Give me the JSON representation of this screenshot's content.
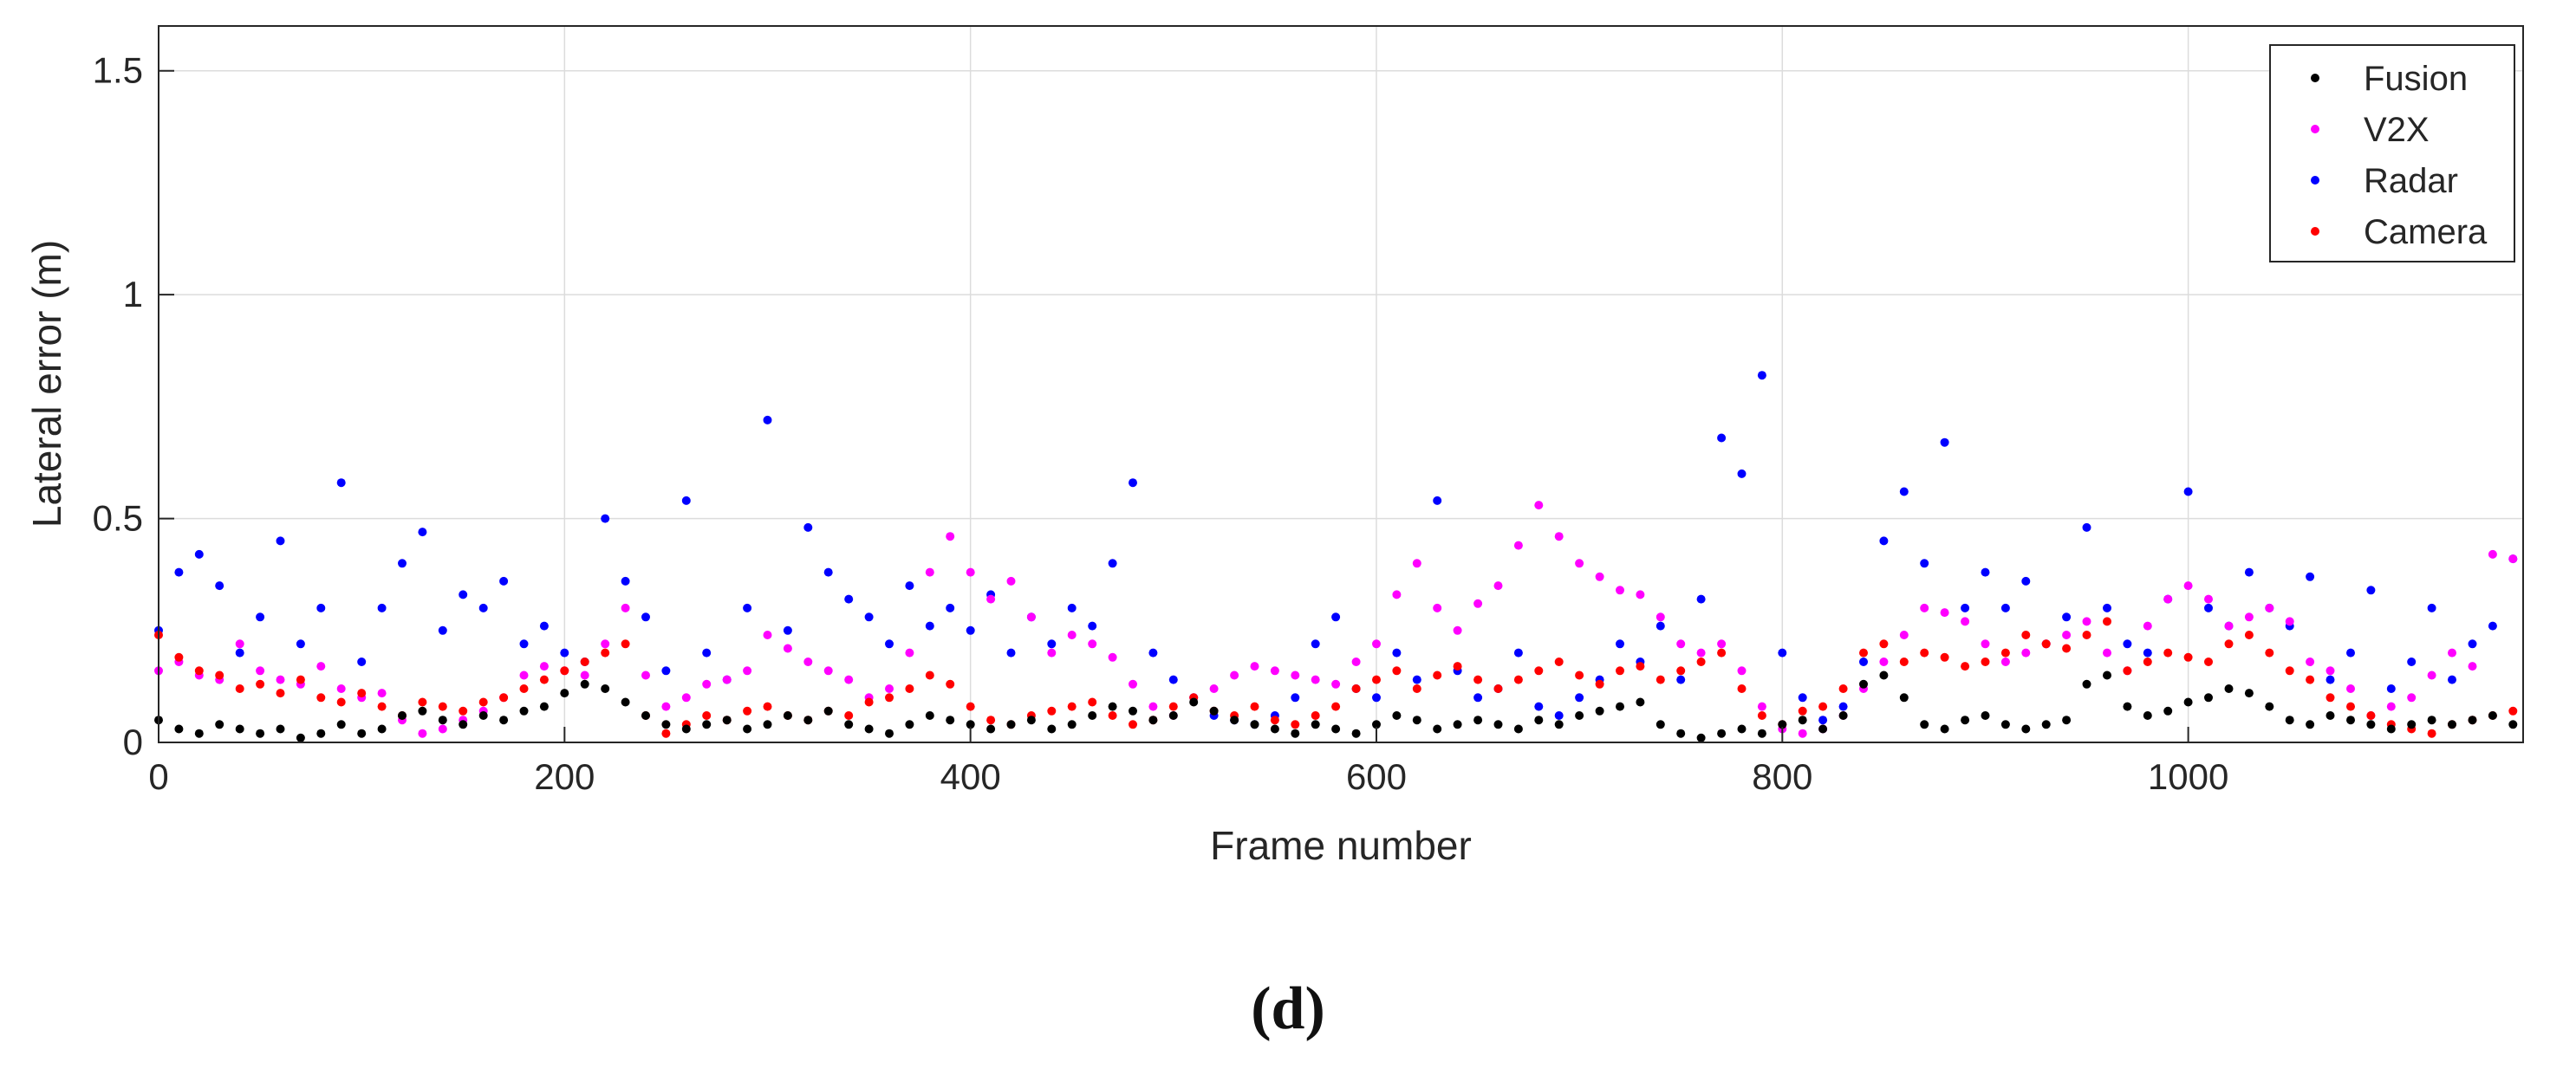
{
  "caption": "(d)",
  "chart_data": {
    "type": "scatter",
    "xlabel": "Frame number",
    "ylabel": "Lateral error (m)",
    "xlim": [
      0,
      1165
    ],
    "ylim": [
      0,
      1.6
    ],
    "xticks": [
      0,
      200,
      400,
      600,
      800,
      1000
    ],
    "yticks": [
      0,
      0.5,
      1,
      1.5
    ],
    "xtick_labels": [
      "0",
      "200",
      "400",
      "600",
      "800",
      "1000"
    ],
    "ytick_labels": [
      "0",
      "0.5",
      "1",
      "1.5"
    ],
    "grid": true,
    "legend_position": "top-right",
    "series": [
      {
        "name": "Fusion",
        "color": "#000000",
        "x": [
          0,
          10,
          20,
          30,
          40,
          50,
          60,
          70,
          80,
          90,
          100,
          110,
          120,
          130,
          140,
          150,
          160,
          170,
          180,
          190,
          200,
          210,
          220,
          230,
          240,
          250,
          260,
          270,
          280,
          290,
          300,
          310,
          320,
          330,
          340,
          350,
          360,
          370,
          380,
          390,
          400,
          410,
          420,
          430,
          440,
          450,
          460,
          470,
          480,
          490,
          500,
          510,
          520,
          530,
          540,
          550,
          560,
          570,
          580,
          590,
          600,
          610,
          620,
          630,
          640,
          650,
          660,
          670,
          680,
          690,
          700,
          710,
          720,
          730,
          740,
          750,
          760,
          770,
          780,
          790,
          800,
          810,
          820,
          830,
          840,
          850,
          860,
          870,
          880,
          890,
          900,
          910,
          920,
          930,
          940,
          950,
          960,
          970,
          980,
          990,
          1000,
          1010,
          1020,
          1030,
          1040,
          1050,
          1060,
          1070,
          1080,
          1090,
          1100,
          1110,
          1120,
          1130,
          1140,
          1150,
          1160
        ],
        "values": [
          0.05,
          0.03,
          0.02,
          0.04,
          0.03,
          0.02,
          0.03,
          0.01,
          0.02,
          0.04,
          0.02,
          0.03,
          0.06,
          0.07,
          0.05,
          0.04,
          0.06,
          0.05,
          0.07,
          0.08,
          0.11,
          0.13,
          0.12,
          0.09,
          0.06,
          0.04,
          0.03,
          0.04,
          0.05,
          0.03,
          0.04,
          0.06,
          0.05,
          0.07,
          0.04,
          0.03,
          0.02,
          0.04,
          0.06,
          0.05,
          0.04,
          0.03,
          0.04,
          0.05,
          0.03,
          0.04,
          0.06,
          0.08,
          0.07,
          0.05,
          0.06,
          0.09,
          0.07,
          0.05,
          0.04,
          0.03,
          0.02,
          0.04,
          0.03,
          0.02,
          0.04,
          0.06,
          0.05,
          0.03,
          0.04,
          0.05,
          0.04,
          0.03,
          0.05,
          0.04,
          0.06,
          0.07,
          0.08,
          0.09,
          0.04,
          0.02,
          0.01,
          0.02,
          0.03,
          0.02,
          0.04,
          0.05,
          0.03,
          0.06,
          0.13,
          0.15,
          0.1,
          0.04,
          0.03,
          0.05,
          0.06,
          0.04,
          0.03,
          0.04,
          0.05,
          0.13,
          0.15,
          0.08,
          0.06,
          0.07,
          0.09,
          0.1,
          0.12,
          0.11,
          0.08,
          0.05,
          0.04,
          0.06,
          0.05,
          0.04,
          0.03,
          0.04,
          0.05,
          0.04,
          0.05,
          0.06,
          0.04
        ]
      },
      {
        "name": "V2X",
        "color": "#ff00ff",
        "x": [
          0,
          10,
          20,
          30,
          40,
          50,
          60,
          70,
          80,
          90,
          100,
          110,
          120,
          130,
          140,
          150,
          160,
          170,
          180,
          190,
          200,
          210,
          220,
          230,
          240,
          250,
          260,
          270,
          280,
          290,
          300,
          310,
          320,
          330,
          340,
          350,
          360,
          370,
          380,
          390,
          400,
          410,
          420,
          430,
          440,
          450,
          460,
          470,
          480,
          490,
          500,
          510,
          520,
          530,
          540,
          550,
          560,
          570,
          580,
          590,
          600,
          610,
          620,
          630,
          640,
          650,
          660,
          670,
          680,
          690,
          700,
          710,
          720,
          730,
          740,
          750,
          760,
          770,
          780,
          790,
          800,
          810,
          820,
          830,
          840,
          850,
          860,
          870,
          880,
          890,
          900,
          910,
          920,
          930,
          940,
          950,
          960,
          970,
          980,
          990,
          1000,
          1010,
          1020,
          1030,
          1040,
          1050,
          1060,
          1070,
          1080,
          1090,
          1100,
          1110,
          1120,
          1130,
          1140,
          1150,
          1160
        ],
        "values": [
          0.16,
          0.18,
          0.15,
          0.14,
          0.22,
          0.16,
          0.14,
          0.13,
          0.17,
          0.12,
          0.1,
          0.11,
          0.05,
          0.02,
          0.03,
          0.05,
          0.07,
          0.1,
          0.15,
          0.17,
          0.16,
          0.15,
          0.22,
          0.3,
          0.15,
          0.08,
          0.1,
          0.13,
          0.14,
          0.16,
          0.24,
          0.21,
          0.18,
          0.16,
          0.14,
          0.1,
          0.12,
          0.2,
          0.38,
          0.46,
          0.38,
          0.32,
          0.36,
          0.28,
          0.2,
          0.24,
          0.22,
          0.19,
          0.13,
          0.08,
          0.06,
          0.1,
          0.12,
          0.15,
          0.17,
          0.16,
          0.15,
          0.14,
          0.13,
          0.18,
          0.22,
          0.33,
          0.4,
          0.3,
          0.25,
          0.31,
          0.35,
          0.44,
          0.53,
          0.46,
          0.4,
          0.37,
          0.34,
          0.33,
          0.28,
          0.22,
          0.2,
          0.22,
          0.16,
          0.08,
          0.03,
          0.02,
          0.03,
          0.06,
          0.12,
          0.18,
          0.24,
          0.3,
          0.29,
          0.27,
          0.22,
          0.18,
          0.2,
          0.22,
          0.24,
          0.27,
          0.2,
          0.16,
          0.26,
          0.32,
          0.35,
          0.32,
          0.26,
          0.28,
          0.3,
          0.27,
          0.18,
          0.16,
          0.12,
          0.06,
          0.08,
          0.1,
          0.15,
          0.2,
          0.17,
          0.42,
          0.41
        ]
      },
      {
        "name": "Radar",
        "color": "#0000ff",
        "x": [
          0,
          10,
          20,
          30,
          40,
          50,
          60,
          70,
          80,
          90,
          100,
          110,
          120,
          130,
          140,
          150,
          160,
          170,
          180,
          190,
          200,
          210,
          220,
          230,
          240,
          250,
          260,
          270,
          280,
          290,
          300,
          310,
          320,
          330,
          340,
          350,
          360,
          370,
          380,
          390,
          400,
          410,
          420,
          430,
          440,
          450,
          460,
          470,
          480,
          490,
          500,
          510,
          520,
          530,
          540,
          550,
          560,
          570,
          580,
          590,
          600,
          610,
          620,
          630,
          640,
          650,
          660,
          670,
          680,
          690,
          700,
          710,
          720,
          730,
          740,
          750,
          760,
          770,
          780,
          790,
          800,
          810,
          820,
          830,
          840,
          850,
          860,
          870,
          880,
          890,
          900,
          910,
          920,
          930,
          940,
          950,
          960,
          970,
          980,
          990,
          1000,
          1010,
          1020,
          1030,
          1040,
          1050,
          1060,
          1070,
          1080,
          1090,
          1100,
          1110,
          1120,
          1130,
          1140,
          1150,
          1160
        ],
        "values": [
          0.25,
          0.38,
          0.42,
          0.35,
          0.2,
          0.28,
          0.45,
          0.22,
          0.3,
          0.58,
          0.18,
          0.3,
          0.4,
          0.47,
          0.25,
          0.33,
          0.3,
          0.36,
          0.22,
          0.26,
          0.2,
          0.18,
          0.5,
          0.36,
          0.28,
          0.16,
          0.54,
          0.2,
          0.14,
          0.3,
          0.72,
          0.25,
          0.48,
          0.38,
          0.32,
          0.28,
          0.22,
          0.35,
          0.26,
          0.3,
          0.25,
          0.33,
          0.2,
          0.28,
          0.22,
          0.3,
          0.26,
          0.4,
          0.58,
          0.2,
          0.14,
          0.1,
          0.06,
          0.05,
          0.04,
          0.06,
          0.1,
          0.22,
          0.28,
          0.12,
          0.1,
          0.2,
          0.14,
          0.54,
          0.16,
          0.1,
          0.12,
          0.2,
          0.08,
          0.06,
          0.1,
          0.14,
          0.22,
          0.18,
          0.26,
          0.14,
          0.32,
          0.68,
          0.6,
          0.82,
          0.2,
          0.1,
          0.05,
          0.08,
          0.18,
          0.45,
          0.56,
          0.4,
          0.67,
          0.3,
          0.38,
          0.3,
          0.36,
          0.22,
          0.28,
          0.48,
          0.3,
          0.22,
          0.2,
          0.32,
          0.56,
          0.3,
          0.26,
          0.38,
          0.3,
          0.26,
          0.37,
          0.14,
          0.2,
          0.34,
          0.12,
          0.18,
          0.3,
          0.14,
          0.22,
          0.26,
          0.41
        ]
      },
      {
        "name": "Camera",
        "color": "#ff0000",
        "x": [
          0,
          10,
          20,
          30,
          40,
          50,
          60,
          70,
          80,
          90,
          100,
          110,
          120,
          130,
          140,
          150,
          160,
          170,
          180,
          190,
          200,
          210,
          220,
          230,
          240,
          250,
          260,
          270,
          280,
          290,
          300,
          310,
          320,
          330,
          340,
          350,
          360,
          370,
          380,
          390,
          400,
          410,
          420,
          430,
          440,
          450,
          460,
          470,
          480,
          490,
          500,
          510,
          520,
          530,
          540,
          550,
          560,
          570,
          580,
          590,
          600,
          610,
          620,
          630,
          640,
          650,
          660,
          670,
          680,
          690,
          700,
          710,
          720,
          730,
          740,
          750,
          760,
          770,
          780,
          790,
          800,
          810,
          820,
          830,
          840,
          850,
          860,
          870,
          880,
          890,
          900,
          910,
          920,
          930,
          940,
          950,
          960,
          970,
          980,
          990,
          1000,
          1010,
          1020,
          1030,
          1040,
          1050,
          1060,
          1070,
          1080,
          1090,
          1100,
          1110,
          1120,
          1130,
          1140,
          1150,
          1160
        ],
        "values": [
          0.24,
          0.19,
          0.16,
          0.15,
          0.12,
          0.13,
          0.11,
          0.14,
          0.1,
          0.09,
          0.11,
          0.08,
          0.06,
          0.09,
          0.08,
          0.07,
          0.09,
          0.1,
          0.12,
          0.14,
          0.16,
          0.18,
          0.2,
          0.22,
          0.06,
          0.02,
          0.04,
          0.06,
          0.05,
          0.07,
          0.08,
          0.06,
          0.05,
          0.07,
          0.06,
          0.09,
          0.1,
          0.12,
          0.15,
          0.13,
          0.08,
          0.05,
          0.04,
          0.06,
          0.07,
          0.08,
          0.09,
          0.06,
          0.04,
          0.05,
          0.08,
          0.1,
          0.07,
          0.06,
          0.08,
          0.05,
          0.04,
          0.06,
          0.08,
          0.12,
          0.14,
          0.16,
          0.12,
          0.15,
          0.17,
          0.14,
          0.12,
          0.14,
          0.16,
          0.18,
          0.15,
          0.13,
          0.16,
          0.17,
          0.14,
          0.16,
          0.18,
          0.2,
          0.12,
          0.06,
          0.04,
          0.07,
          0.08,
          0.12,
          0.2,
          0.22,
          0.18,
          0.2,
          0.19,
          0.17,
          0.18,
          0.2,
          0.24,
          0.22,
          0.21,
          0.24,
          0.27,
          0.16,
          0.18,
          0.2,
          0.19,
          0.18,
          0.22,
          0.24,
          0.2,
          0.16,
          0.14,
          0.1,
          0.08,
          0.06,
          0.04,
          0.03,
          0.02,
          0.04,
          0.05,
          0.06,
          0.07
        ]
      }
    ]
  }
}
